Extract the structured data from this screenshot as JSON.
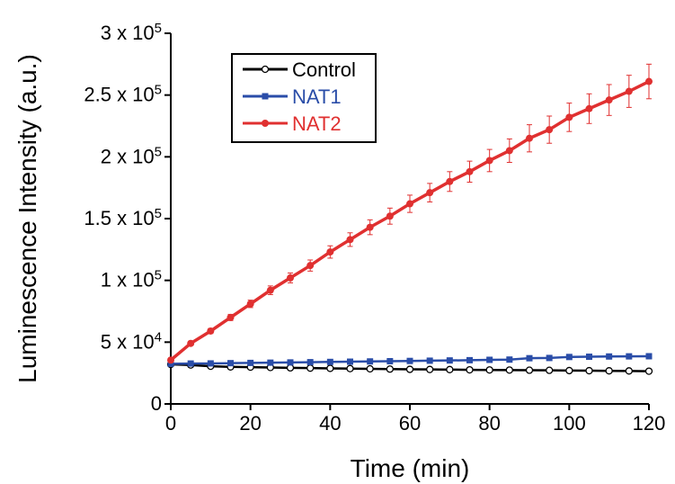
{
  "chart_data": {
    "type": "line",
    "xlabel": "Time (min)",
    "ylabel": "Luminescence Intensity (a.u.)",
    "xlim": [
      0,
      120
    ],
    "ylim": [
      0,
      300000
    ],
    "x_ticks": [
      0,
      20,
      40,
      60,
      80,
      100,
      120
    ],
    "y_ticks": [
      {
        "value": 0,
        "base": "0",
        "exp": ""
      },
      {
        "value": 50000,
        "base": "5 x 10",
        "exp": "4"
      },
      {
        "value": 100000,
        "base": "1 x 10",
        "exp": "5"
      },
      {
        "value": 150000,
        "base": "1.5 x 10",
        "exp": "5"
      },
      {
        "value": 200000,
        "base": "2 x 10",
        "exp": "5"
      },
      {
        "value": 250000,
        "base": "2.5 x 10",
        "exp": "5"
      },
      {
        "value": 300000,
        "base": "3 x 10",
        "exp": "5"
      }
    ],
    "grid": false,
    "legend_position": "top-left",
    "x": [
      0,
      5,
      10,
      15,
      20,
      25,
      30,
      35,
      40,
      45,
      50,
      55,
      60,
      65,
      70,
      75,
      80,
      85,
      90,
      95,
      100,
      105,
      110,
      115,
      120
    ],
    "series": [
      {
        "name": "Control",
        "color": "#000000",
        "marker": "open-circle",
        "values": [
          32000,
          31500,
          30500,
          30000,
          29800,
          29500,
          29200,
          29000,
          28800,
          28600,
          28400,
          28200,
          28000,
          27900,
          27800,
          27600,
          27500,
          27400,
          27300,
          27200,
          27000,
          26900,
          26800,
          26700,
          26500
        ],
        "errors": []
      },
      {
        "name": "NAT1",
        "color": "#2a4da8",
        "marker": "square",
        "values": [
          32500,
          32700,
          32800,
          33000,
          33200,
          33400,
          33600,
          33800,
          34000,
          34200,
          34400,
          34600,
          34800,
          35000,
          35200,
          35400,
          35700,
          35900,
          37000,
          37200,
          38000,
          38200,
          38400,
          38500,
          38600
        ],
        "errors": []
      },
      {
        "name": "NAT2",
        "color": "#e03030",
        "marker": "filled-circle",
        "values": [
          35500,
          49000,
          59000,
          70000,
          81000,
          92000,
          102000,
          112000,
          123000,
          133000,
          143000,
          152000,
          162000,
          171000,
          180000,
          188000,
          197000,
          205000,
          215000,
          222000,
          232000,
          239000,
          246000,
          253000,
          261000
        ],
        "errors": [
          0,
          1500,
          2000,
          2500,
          3000,
          3500,
          4000,
          4500,
          5000,
          5500,
          6000,
          6500,
          7000,
          7500,
          8000,
          8500,
          9000,
          9500,
          11000,
          11000,
          11500,
          12000,
          12500,
          13000,
          14000
        ]
      }
    ]
  }
}
